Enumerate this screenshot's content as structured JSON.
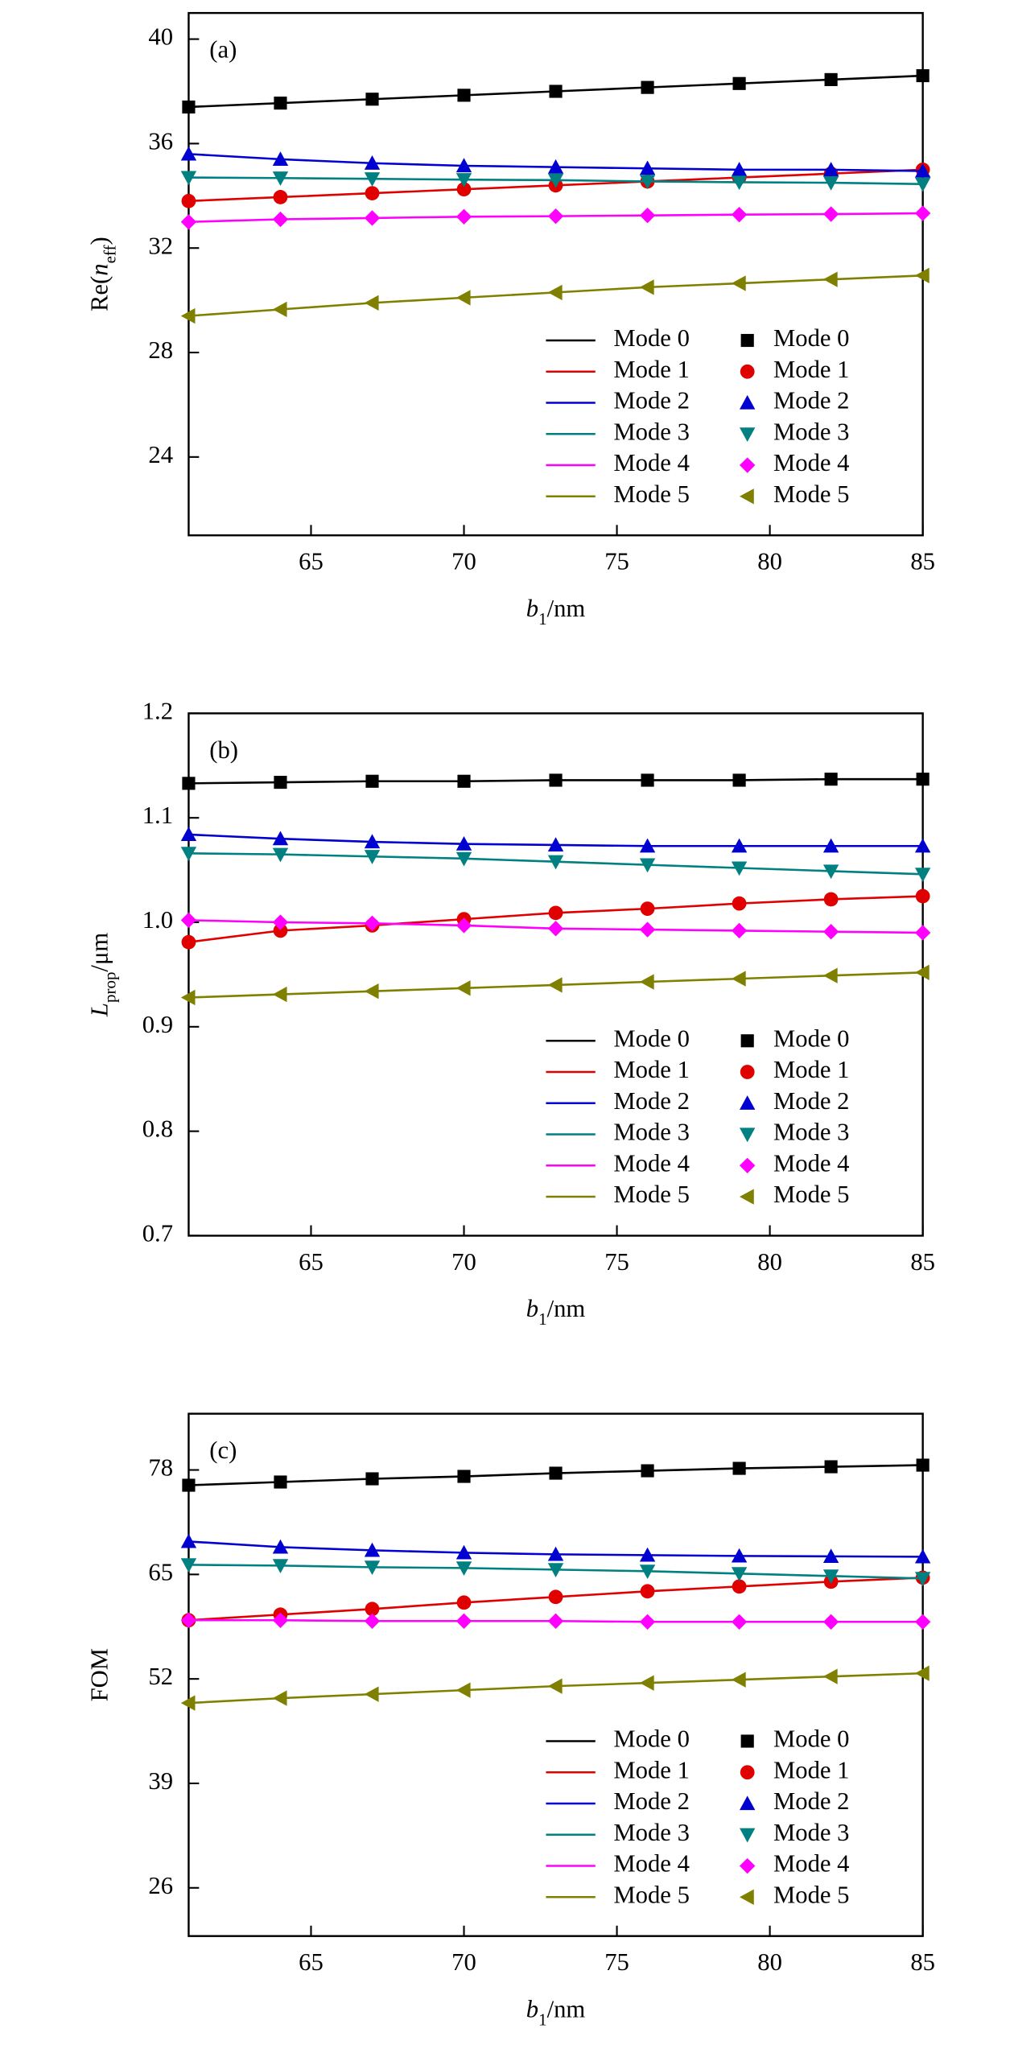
{
  "chart_data": [
    {
      "type": "line",
      "panel_label": "(a)",
      "x": [
        61,
        64,
        67,
        70,
        73,
        76,
        79,
        82,
        85
      ],
      "xlim": [
        61,
        85
      ],
      "xticks": [
        65,
        70,
        75,
        80,
        85
      ],
      "ylim": [
        21,
        41
      ],
      "yticks": [
        24,
        28,
        32,
        36,
        40
      ],
      "x_label": [
        {
          "text": "b",
          "style": "italic"
        },
        {
          "text": "1",
          "style": "sub"
        },
        {
          "text": "/nm",
          "style": "normal"
        }
      ],
      "y_label": [
        {
          "text": "Re(",
          "style": "normal"
        },
        {
          "text": "n",
          "style": "italic"
        },
        {
          "text": "eff",
          "style": "sub"
        },
        {
          "text": ")",
          "style": "normal"
        }
      ],
      "legend": "lower right",
      "series": [
        {
          "name": "Mode 0",
          "color": "#000000",
          "marker": "square",
          "values": [
            37.4,
            37.55,
            37.7,
            37.85,
            38.0,
            38.15,
            38.3,
            38.45,
            38.6
          ]
        },
        {
          "name": "Mode 1",
          "color": "#e00000",
          "marker": "circle",
          "values": [
            33.8,
            33.95,
            34.1,
            34.25,
            34.4,
            34.55,
            34.7,
            34.85,
            35.0
          ]
        },
        {
          "name": "Mode 2",
          "color": "#0000d0",
          "marker": "triangle-up",
          "values": [
            35.6,
            35.4,
            35.25,
            35.15,
            35.1,
            35.05,
            35.0,
            35.0,
            34.95
          ]
        },
        {
          "name": "Mode 3",
          "color": "#008080",
          "marker": "triangle-down",
          "values": [
            34.7,
            34.68,
            34.65,
            34.62,
            34.6,
            34.55,
            34.52,
            34.5,
            34.45
          ]
        },
        {
          "name": "Mode 4",
          "color": "#ff00ff",
          "marker": "diamond",
          "values": [
            33.0,
            33.1,
            33.15,
            33.2,
            33.22,
            33.25,
            33.28,
            33.3,
            33.33
          ]
        },
        {
          "name": "Mode 5",
          "color": "#808000",
          "marker": "triangle-left",
          "values": [
            29.4,
            29.65,
            29.9,
            30.1,
            30.3,
            30.5,
            30.65,
            30.8,
            30.95
          ]
        }
      ]
    },
    {
      "type": "line",
      "panel_label": "(b)",
      "x": [
        61,
        64,
        67,
        70,
        73,
        76,
        79,
        82,
        85
      ],
      "xlim": [
        61,
        85
      ],
      "xticks": [
        65,
        70,
        75,
        80,
        85
      ],
      "ylim": [
        0.7,
        1.2
      ],
      "yticks": [
        0.7,
        0.8,
        0.9,
        {
          "value": 1,
          "label": "1.0"
        },
        1.1,
        1.2
      ],
      "x_label": [
        {
          "text": "b",
          "style": "italic"
        },
        {
          "text": "1",
          "style": "sub"
        },
        {
          "text": "/nm",
          "style": "normal"
        }
      ],
      "y_label": [
        {
          "text": "L",
          "style": "italic"
        },
        {
          "text": "prop",
          "style": "sub"
        },
        {
          "text": "/μm",
          "style": "normal"
        }
      ],
      "legend": "lower right",
      "series": [
        {
          "name": "Mode 0",
          "color": "#000000",
          "marker": "square",
          "values": [
            1.133,
            1.134,
            1.135,
            1.135,
            1.136,
            1.136,
            1.136,
            1.137,
            1.137
          ]
        },
        {
          "name": "Mode 1",
          "color": "#e00000",
          "marker": "circle",
          "values": [
            0.981,
            0.992,
            0.997,
            1.003,
            1.009,
            1.013,
            1.018,
            1.022,
            1.025
          ]
        },
        {
          "name": "Mode 2",
          "color": "#0000d0",
          "marker": "triangle-up",
          "values": [
            1.084,
            1.08,
            1.077,
            1.075,
            1.074,
            1.073,
            1.073,
            1.073,
            1.073
          ]
        },
        {
          "name": "Mode 3",
          "color": "#008080",
          "marker": "triangle-down",
          "values": [
            1.066,
            1.065,
            1.063,
            1.061,
            1.058,
            1.055,
            1.052,
            1.049,
            1.046
          ]
        },
        {
          "name": "Mode 4",
          "color": "#ff00ff",
          "marker": "diamond",
          "values": [
            1.002,
            1.0,
            0.999,
            0.997,
            0.994,
            0.993,
            0.992,
            0.991,
            0.99
          ]
        },
        {
          "name": "Mode 5",
          "color": "#808000",
          "marker": "triangle-left",
          "values": [
            0.928,
            0.931,
            0.934,
            0.937,
            0.94,
            0.943,
            0.946,
            0.949,
            0.952
          ]
        }
      ]
    },
    {
      "type": "line",
      "panel_label": "(c)",
      "x": [
        61,
        64,
        67,
        70,
        73,
        76,
        79,
        82,
        85
      ],
      "xlim": [
        61,
        85
      ],
      "xticks": [
        65,
        70,
        75,
        80,
        85
      ],
      "ylim": [
        20,
        85
      ],
      "yticks": [
        26,
        39,
        52,
        65,
        78
      ],
      "x_label": [
        {
          "text": "b",
          "style": "italic"
        },
        {
          "text": "1",
          "style": "sub"
        },
        {
          "text": "/nm",
          "style": "normal"
        }
      ],
      "y_label": [
        {
          "text": "FOM",
          "style": "normal"
        }
      ],
      "legend": "lower right",
      "series": [
        {
          "name": "Mode 0",
          "color": "#000000",
          "marker": "square",
          "values": [
            76.1,
            76.5,
            76.9,
            77.2,
            77.6,
            77.9,
            78.2,
            78.4,
            78.6
          ]
        },
        {
          "name": "Mode 1",
          "color": "#e00000",
          "marker": "circle",
          "values": [
            59.3,
            60.0,
            60.7,
            61.5,
            62.2,
            62.9,
            63.5,
            64.1,
            64.6
          ]
        },
        {
          "name": "Mode 2",
          "color": "#0000d0",
          "marker": "triangle-up",
          "values": [
            69.1,
            68.4,
            68.0,
            67.7,
            67.5,
            67.4,
            67.3,
            67.25,
            67.2
          ]
        },
        {
          "name": "Mode 3",
          "color": "#008080",
          "marker": "triangle-down",
          "values": [
            66.2,
            66.1,
            65.9,
            65.8,
            65.6,
            65.4,
            65.1,
            64.8,
            64.5
          ]
        },
        {
          "name": "Mode 4",
          "color": "#ff00ff",
          "marker": "diamond",
          "values": [
            59.3,
            59.3,
            59.2,
            59.2,
            59.2,
            59.1,
            59.1,
            59.1,
            59.1
          ]
        },
        {
          "name": "Mode 5",
          "color": "#808000",
          "marker": "triangle-left",
          "values": [
            49.0,
            49.6,
            50.1,
            50.6,
            51.1,
            51.5,
            51.9,
            52.3,
            52.7
          ]
        }
      ]
    }
  ]
}
